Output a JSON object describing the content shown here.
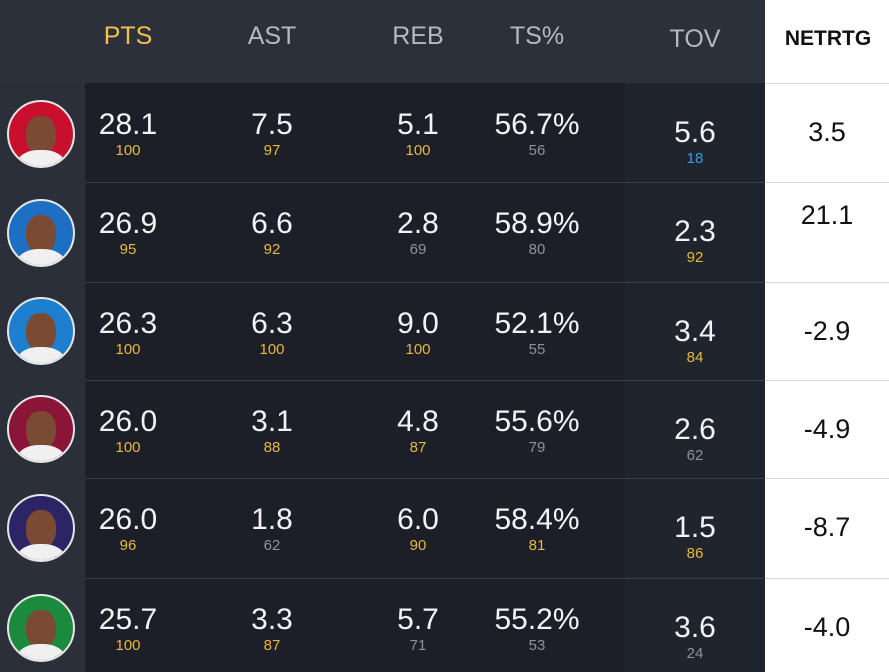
{
  "table": {
    "headers": [
      "PTS",
      "AST",
      "REB",
      "TS%",
      "TOV",
      "NETRTG"
    ],
    "rows": [
      {
        "stats": [
          {
            "value": "28.1",
            "pct": "100"
          },
          {
            "value": "7.5",
            "pct": "97"
          },
          {
            "value": "5.1",
            "pct": "100"
          },
          {
            "value": "56.7%",
            "pct": "56"
          },
          {
            "value": "5.6",
            "pct": "18"
          }
        ],
        "netrtg": "3.5"
      },
      {
        "stats": [
          {
            "value": "26.9",
            "pct": "95"
          },
          {
            "value": "6.6",
            "pct": "92"
          },
          {
            "value": "2.8",
            "pct": "69"
          },
          {
            "value": "58.9%",
            "pct": "80"
          },
          {
            "value": "2.3",
            "pct": "92"
          }
        ],
        "netrtg": "21.1"
      },
      {
        "stats": [
          {
            "value": "26.3",
            "pct": "100"
          },
          {
            "value": "6.3",
            "pct": "100"
          },
          {
            "value": "9.0",
            "pct": "100"
          },
          {
            "value": "52.1%",
            "pct": "55"
          },
          {
            "value": "3.4",
            "pct": "84"
          }
        ],
        "netrtg": "-2.9"
      },
      {
        "stats": [
          {
            "value": "26.0",
            "pct": "100"
          },
          {
            "value": "3.1",
            "pct": "88"
          },
          {
            "value": "4.8",
            "pct": "87"
          },
          {
            "value": "55.6%",
            "pct": "79"
          },
          {
            "value": "2.6",
            "pct": "62"
          }
        ],
        "netrtg": "-4.9"
      },
      {
        "stats": [
          {
            "value": "26.0",
            "pct": "96"
          },
          {
            "value": "1.8",
            "pct": "62"
          },
          {
            "value": "6.0",
            "pct": "90"
          },
          {
            "value": "58.4%",
            "pct": "81"
          },
          {
            "value": "1.5",
            "pct": "86"
          }
        ],
        "netrtg": "-8.7"
      },
      {
        "stats": [
          {
            "value": "25.7",
            "pct": "100"
          },
          {
            "value": "3.3",
            "pct": "87"
          },
          {
            "value": "5.7",
            "pct": "71"
          },
          {
            "value": "55.2%",
            "pct": "53"
          },
          {
            "value": "3.6",
            "pct": "24"
          }
        ],
        "netrtg": "-4.0"
      }
    ]
  }
}
